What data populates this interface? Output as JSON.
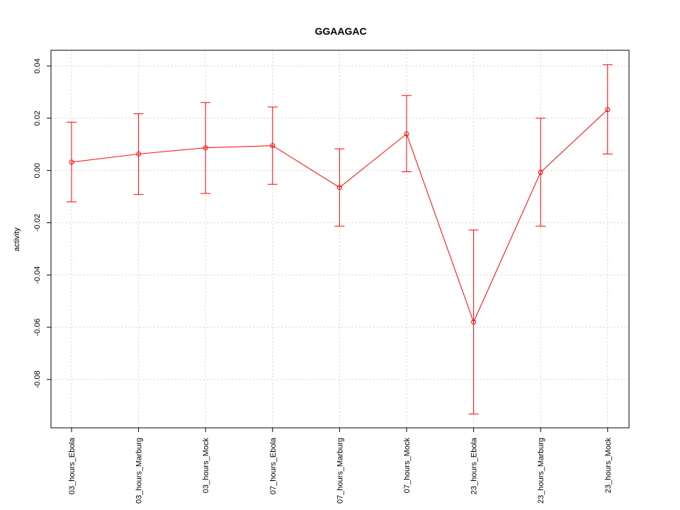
{
  "chart_data": {
    "type": "line",
    "title": "GGAAGAC",
    "xlabel": "",
    "ylabel": "activity",
    "categories": [
      "03_hours_Ebola",
      "03_hours_Marburg",
      "03_hours_Mock",
      "07_hours_Ebola",
      "07_hours_Marburg",
      "07_hours_Mock",
      "23_hours_Ebola",
      "23_hours_Marburg",
      "23_hours_Mock"
    ],
    "series": [
      {
        "values": [
          0.0032,
          0.0063,
          0.0087,
          0.0095,
          -0.0065,
          0.014,
          -0.058,
          -0.0007,
          0.0233
        ],
        "lower": [
          -0.012,
          -0.0092,
          -0.0088,
          -0.0053,
          -0.0213,
          -0.0005,
          -0.0932,
          -0.0213,
          0.0063
        ],
        "upper": [
          0.0185,
          0.0217,
          0.026,
          0.0243,
          0.0083,
          0.0287,
          -0.0228,
          0.02,
          0.0405
        ],
        "color": "#ff0000"
      }
    ],
    "ylim": [
      -0.0985,
      0.046
    ],
    "yticks": [
      0.04,
      0.02,
      0.0,
      -0.02,
      -0.04,
      -0.06,
      -0.08
    ],
    "ytick_labels": [
      "0.04",
      "0.02",
      "0.00",
      "-0.02",
      "-0.04",
      "-0.06",
      "-0.08"
    ],
    "grid": true
  }
}
